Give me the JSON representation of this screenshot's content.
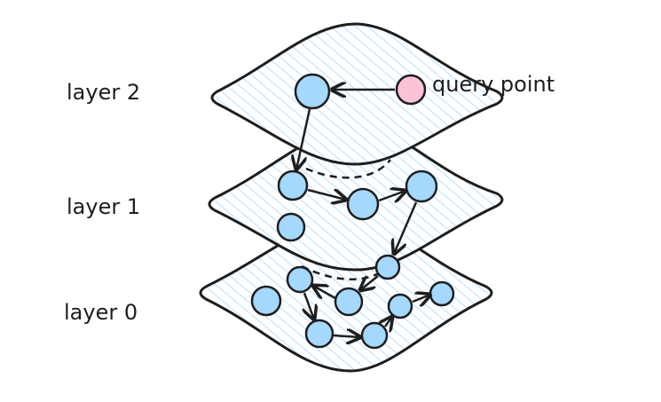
{
  "layers": [
    {
      "label": "layer 2"
    },
    {
      "label": "layer 1"
    },
    {
      "label": "layer 0"
    }
  ],
  "query_label": "query point"
}
